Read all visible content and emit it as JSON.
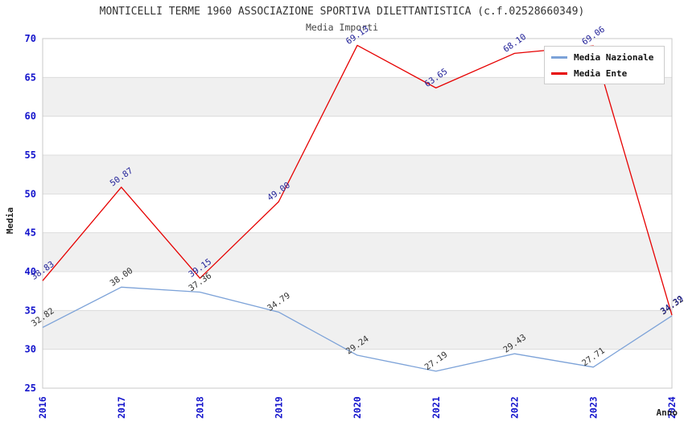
{
  "title": "MONTICELLI TERME 1960 ASSOCIAZIONE SPORTIVA DILETTANTISTICA (c.f.02528660349)",
  "subtitle": "Media Importi",
  "legend": {
    "items": [
      {
        "label": "Media Nazionale",
        "color": "#7CA2D8"
      },
      {
        "label": "Media Ente",
        "color": "#E60000"
      }
    ]
  },
  "chart_data": {
    "type": "line",
    "title": "MONTICELLI TERME 1960 ASSOCIAZIONE SPORTIVA DILETTANTISTICA (c.f.02528660349)",
    "subtitle": "Media Importi",
    "xlabel": "Anno",
    "ylabel": "Media",
    "x": [
      2016,
      2017,
      2018,
      2019,
      2020,
      2021,
      2022,
      2023,
      2024
    ],
    "series": [
      {
        "name": "Media Nazionale",
        "color": "#7CA2D8",
        "label_color": "#333333",
        "values": [
          32.82,
          38.0,
          37.36,
          34.79,
          29.24,
          27.19,
          29.43,
          27.71,
          34.32
        ]
      },
      {
        "name": "Media Ente",
        "color": "#E60000",
        "label_color": "#222299",
        "values": [
          38.83,
          50.87,
          39.15,
          49.0,
          69.13,
          63.65,
          68.1,
          69.06,
          34.39
        ]
      }
    ],
    "ylim": [
      25,
      70
    ],
    "ytick_step": 5,
    "grid": true,
    "band_fill_ranges": [
      [
        30,
        35
      ],
      [
        40,
        45
      ],
      [
        50,
        55
      ],
      [
        60,
        65
      ]
    ],
    "legend_position": "top-right",
    "axis_tick_color": "#1414CC",
    "grid_color": "#DCDCDC",
    "band_color": "#F0F0F0",
    "border_color": "#C8C8C8"
  }
}
